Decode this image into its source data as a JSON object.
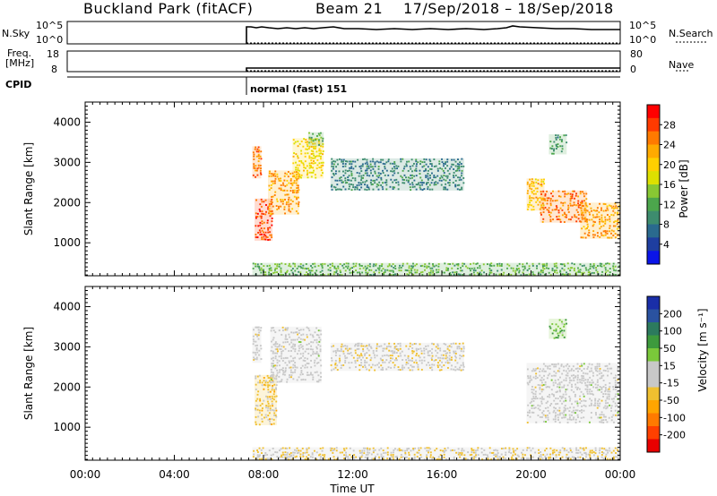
{
  "header": {
    "site": "Buckland Park (fitACF)",
    "beam": "Beam 21",
    "date_range": "17/Sep/2018 – 18/Sep/2018"
  },
  "params": {
    "nsky_label": "N.Sky",
    "nsky_ticks": [
      "10^5",
      "10^0"
    ],
    "nsearch_label": "N.Search",
    "nsearch_ticks": [
      "10^5",
      "10^0"
    ],
    "freq_label": "Freq.",
    "freq_unit": "[MHz]",
    "freq_ticks": [
      "18",
      "8"
    ],
    "nave_label": "Nave",
    "nave_ticks": [
      "80",
      "0"
    ],
    "cpid_label": "CPID",
    "cpid_value": "normal (fast) 151",
    "data_start_utc": "07:30"
  },
  "panels": {
    "power": {
      "ylabel": "Slant Range [km]",
      "yticks": [
        "4000",
        "3000",
        "2000",
        "1000"
      ],
      "cbar_label": "Power [dB]",
      "cbar_ticks": [
        "28",
        "24",
        "20",
        "16",
        "12",
        "8",
        "4"
      ],
      "cbar_colors": [
        "#ff0000",
        "#ff3a00",
        "#ff7a00",
        "#ffaa00",
        "#ffd000",
        "#dde000",
        "#88c833",
        "#4ca64c",
        "#3d8c6e",
        "#2a6a8e",
        "#1e3ea0",
        "#0a14e8"
      ]
    },
    "velocity": {
      "ylabel": "Slant Range [km]",
      "yticks": [
        "4000",
        "3000",
        "2000",
        "1000"
      ],
      "cbar_label": "Velocity [m s⁻¹]",
      "cbar_ticks": [
        "200",
        "100",
        "50",
        "15",
        "-15",
        "-50",
        "-100",
        "-200"
      ],
      "cbar_colors": [
        "#1a2ea8",
        "#2a52a0",
        "#2c7a5e",
        "#3d9a3d",
        "#7ac83a",
        "#c8c8c8",
        "#c8c8c8",
        "#f0c030",
        "#ffa500",
        "#ff7a00",
        "#ff4000",
        "#e80000"
      ]
    }
  },
  "xaxis": {
    "label": "Time UT",
    "ticks": [
      "00:00",
      "04:00",
      "08:00",
      "12:00",
      "16:00",
      "20:00",
      "00:00"
    ]
  },
  "chart_data": {
    "type": "heatmap",
    "title": "Buckland Park (fitACF)   Beam 21   17/Sep/2018 – 18/Sep/2018",
    "xlabel": "Time UT",
    "ylabel": "Slant Range [km]",
    "xlim_hours": [
      0,
      24
    ],
    "ylim_km": [
      180,
      4500
    ],
    "data_start_hours": 7.5,
    "grid": false,
    "panels": [
      {
        "name": "Power",
        "units": "dB",
        "clim": [
          0,
          30
        ],
        "regions": [
          {
            "t0": 7.5,
            "t1": 7.9,
            "r0": 2600,
            "r1": 3400,
            "value": 24
          },
          {
            "t0": 7.6,
            "t1": 8.4,
            "r0": 1050,
            "r1": 2100,
            "value": 26
          },
          {
            "t0": 8.2,
            "t1": 9.6,
            "r0": 1700,
            "r1": 2800,
            "value": 22
          },
          {
            "t0": 9.3,
            "t1": 10.7,
            "r0": 2600,
            "r1": 3600,
            "value": 18
          },
          {
            "t0": 10.0,
            "t1": 10.7,
            "r0": 3400,
            "r1": 3750,
            "value": 12
          },
          {
            "t0": 11.0,
            "t1": 17.0,
            "r0": 2300,
            "r1": 3100,
            "value": 8
          },
          {
            "t0": 19.8,
            "t1": 20.6,
            "r0": 1800,
            "r1": 2600,
            "value": 20
          },
          {
            "t0": 20.4,
            "t1": 22.5,
            "r0": 1500,
            "r1": 2300,
            "value": 24
          },
          {
            "t0": 22.2,
            "t1": 24.0,
            "r0": 1100,
            "r1": 2000,
            "value": 22
          },
          {
            "t0": 20.8,
            "t1": 21.6,
            "r0": 3200,
            "r1": 3700,
            "value": 10
          },
          {
            "t0": 7.5,
            "t1": 24.0,
            "r0": 180,
            "r1": 500,
            "value": 12
          }
        ]
      },
      {
        "name": "Velocity",
        "units": "m s^-1",
        "clim": [
          -200,
          200
        ],
        "regions": [
          {
            "t0": 7.5,
            "t1": 7.9,
            "r0": 2600,
            "r1": 3500,
            "value": 0
          },
          {
            "t0": 7.6,
            "t1": 8.6,
            "r0": 1050,
            "r1": 2300,
            "value": -40
          },
          {
            "t0": 8.3,
            "t1": 10.6,
            "r0": 2100,
            "r1": 3500,
            "value": 0
          },
          {
            "t0": 11.0,
            "t1": 17.0,
            "r0": 2400,
            "r1": 3100,
            "value": -20
          },
          {
            "t0": 19.8,
            "t1": 24.0,
            "r0": 1100,
            "r1": 2600,
            "value": 0
          },
          {
            "t0": 20.8,
            "t1": 21.6,
            "r0": 3200,
            "r1": 3700,
            "value": 60
          },
          {
            "t0": 7.5,
            "t1": 24.0,
            "r0": 180,
            "r1": 500,
            "value": -30
          }
        ]
      }
    ]
  }
}
